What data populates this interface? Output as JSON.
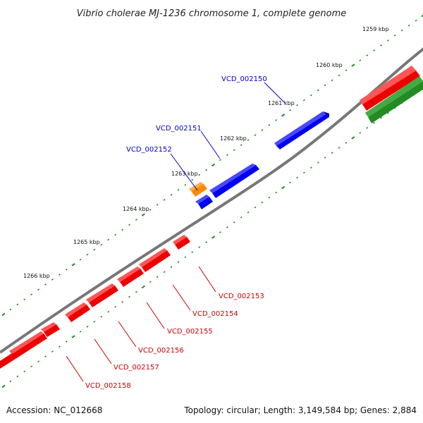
{
  "title": "Vibrio cholerae MJ-1236 chromosome 1, complete genome",
  "footer": {
    "accession": "Accession: NC_012668",
    "summary": "Topology: circular; Length: 3,149,584 bp; Genes: 2,884"
  },
  "colors": {
    "backbone": "#808080",
    "tick": "#228b22",
    "forward_gene": "#0000ee",
    "reverse_gene": "#ee0000",
    "other_gene": "#ff8800",
    "green_feature": "#228b22",
    "label_forward": "#0000cc",
    "label_reverse": "#cc0000"
  },
  "scale_labels": [
    "1259 kbp",
    "1260 kbp",
    "1261 kbp",
    "1262 kbp",
    "1263 kbp",
    "1264 kbp",
    "1265 kbp",
    "1266 kbp"
  ],
  "gene_labels_forward": [
    "VCD_002150",
    "VCD_002151",
    "VCD_002152"
  ],
  "gene_labels_reverse": [
    "VCD_002153",
    "VCD_002154",
    "VCD_002155",
    "VCD_002156",
    "VCD_002157",
    "VCD_002158"
  ]
}
